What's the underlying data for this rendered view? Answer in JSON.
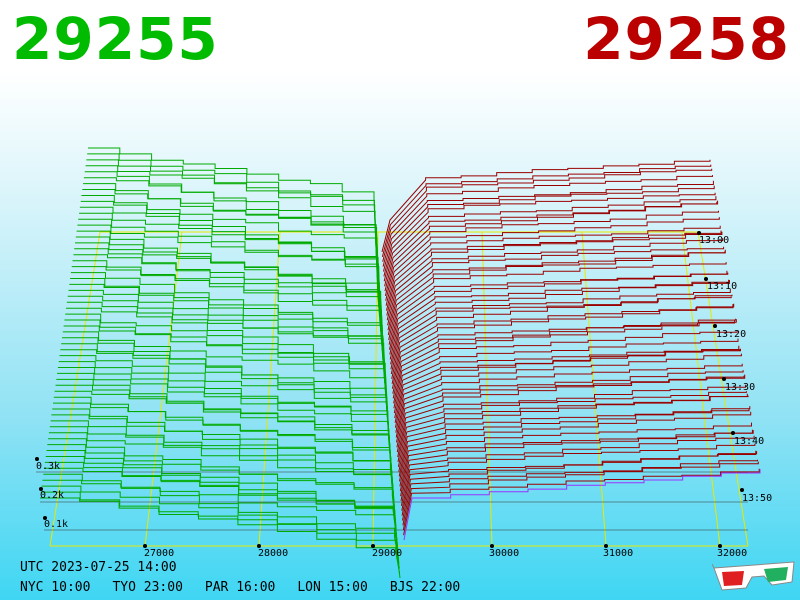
{
  "header": {
    "bid_price": "29255",
    "ask_price": "29258",
    "bid_color": "#00bb00",
    "ask_color": "#bb0000"
  },
  "depth_chart": {
    "price_ticks": [
      "27000",
      "28000",
      "29000",
      "30000",
      "31000",
      "32000"
    ],
    "volume_ticks": [
      "0.1k",
      "0.2k",
      "0.3k"
    ],
    "time_ticks": [
      "13:00",
      "13:10",
      "13:20",
      "13:30",
      "13:40",
      "13:50"
    ],
    "bid_line_color": "#00aa00",
    "ask_line_color": "#990000",
    "latest_ask_color": "#9933ff",
    "grid_color": "#e8e800"
  },
  "footer": {
    "utc": "UTC 2023-07-25 14:00",
    "zones": [
      "NYC 10:00",
      "TYO 23:00",
      "PAR 16:00",
      "LON 15:00",
      "BJS 22:00"
    ]
  },
  "icons": {
    "glasses": "3d-glasses-icon"
  }
}
